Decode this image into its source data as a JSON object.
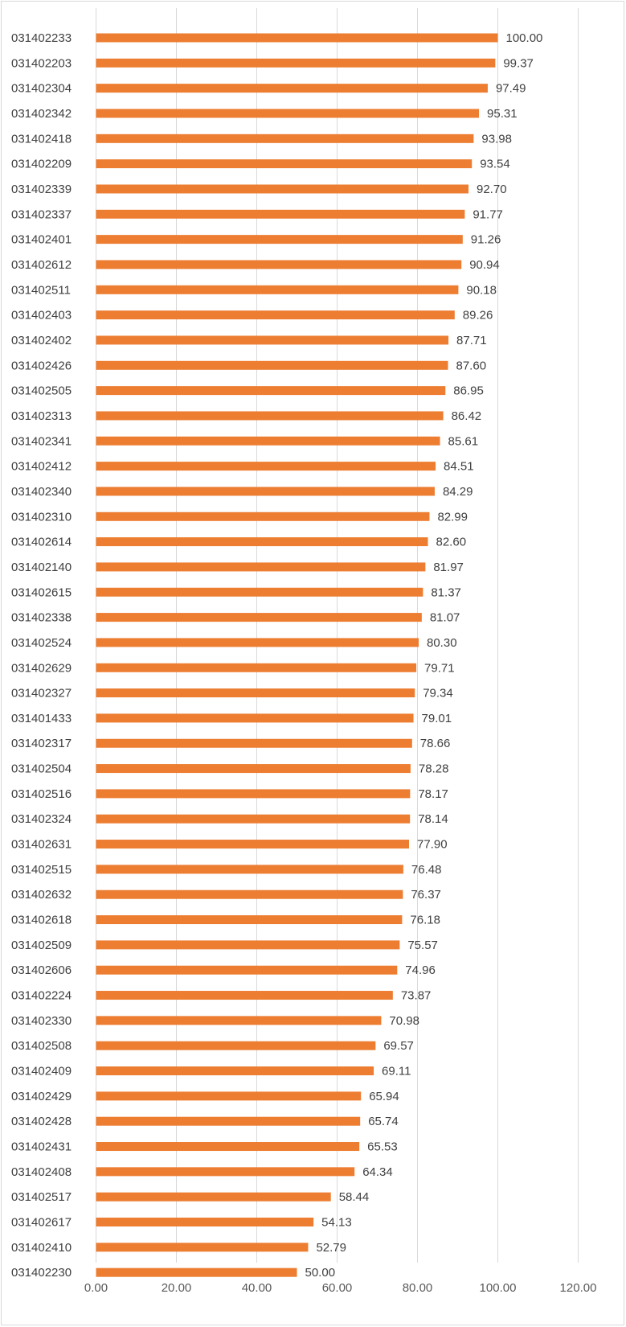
{
  "chart_data": {
    "type": "bar",
    "orientation": "horizontal",
    "title": "",
    "xlabel": "",
    "ylabel": "",
    "xlim": [
      0,
      120
    ],
    "x_ticks": [
      "0.00",
      "20.00",
      "40.00",
      "60.00",
      "80.00",
      "100.00",
      "120.00"
    ],
    "x_tick_values": [
      0,
      20,
      40,
      60,
      80,
      100,
      120
    ],
    "grid": "vertical",
    "bar_color": "#ED7D31",
    "categories": [
      "031402233",
      "031402203",
      "031402304",
      "031402342",
      "031402418",
      "031402209",
      "031402339",
      "031402337",
      "031402401",
      "031402612",
      "031402511",
      "031402403",
      "031402402",
      "031402426",
      "031402505",
      "031402313",
      "031402341",
      "031402412",
      "031402340",
      "031402310",
      "031402614",
      "031402140",
      "031402615",
      "031402338",
      "031402524",
      "031402629",
      "031402327",
      "031401433",
      "031402317",
      "031402504",
      "031402516",
      "031402324",
      "031402631",
      "031402515",
      "031402632",
      "031402618",
      "031402509",
      "031402606",
      "031402224",
      "031402330",
      "031402508",
      "031402409",
      "031402429",
      "031402428",
      "031402431",
      "031402408",
      "031402517",
      "031402617",
      "031402410",
      "031402230"
    ],
    "values": [
      100.0,
      99.37,
      97.49,
      95.31,
      93.98,
      93.54,
      92.7,
      91.77,
      91.26,
      90.94,
      90.18,
      89.26,
      87.71,
      87.6,
      86.95,
      86.42,
      85.61,
      84.51,
      84.29,
      82.99,
      82.6,
      81.97,
      81.37,
      81.07,
      80.3,
      79.71,
      79.34,
      79.01,
      78.66,
      78.28,
      78.17,
      78.14,
      77.9,
      76.48,
      76.37,
      76.18,
      75.57,
      74.96,
      73.87,
      70.98,
      69.57,
      69.11,
      65.94,
      65.74,
      65.53,
      64.34,
      58.44,
      54.13,
      52.79,
      50.0
    ],
    "value_labels": [
      "100.00",
      "99.37",
      "97.49",
      "95.31",
      "93.98",
      "93.54",
      "92.70",
      "91.77",
      "91.26",
      "90.94",
      "90.18",
      "89.26",
      "87.71",
      "87.60",
      "86.95",
      "86.42",
      "85.61",
      "84.51",
      "84.29",
      "82.99",
      "82.60",
      "81.97",
      "81.37",
      "81.07",
      "80.30",
      "79.71",
      "79.34",
      "79.01",
      "78.66",
      "78.28",
      "78.17",
      "78.14",
      "77.90",
      "76.48",
      "76.37",
      "76.18",
      "75.57",
      "74.96",
      "73.87",
      "70.98",
      "69.57",
      "69.11",
      "65.94",
      "65.74",
      "65.53",
      "64.34",
      "58.44",
      "54.13",
      "52.79",
      "50.00"
    ]
  }
}
